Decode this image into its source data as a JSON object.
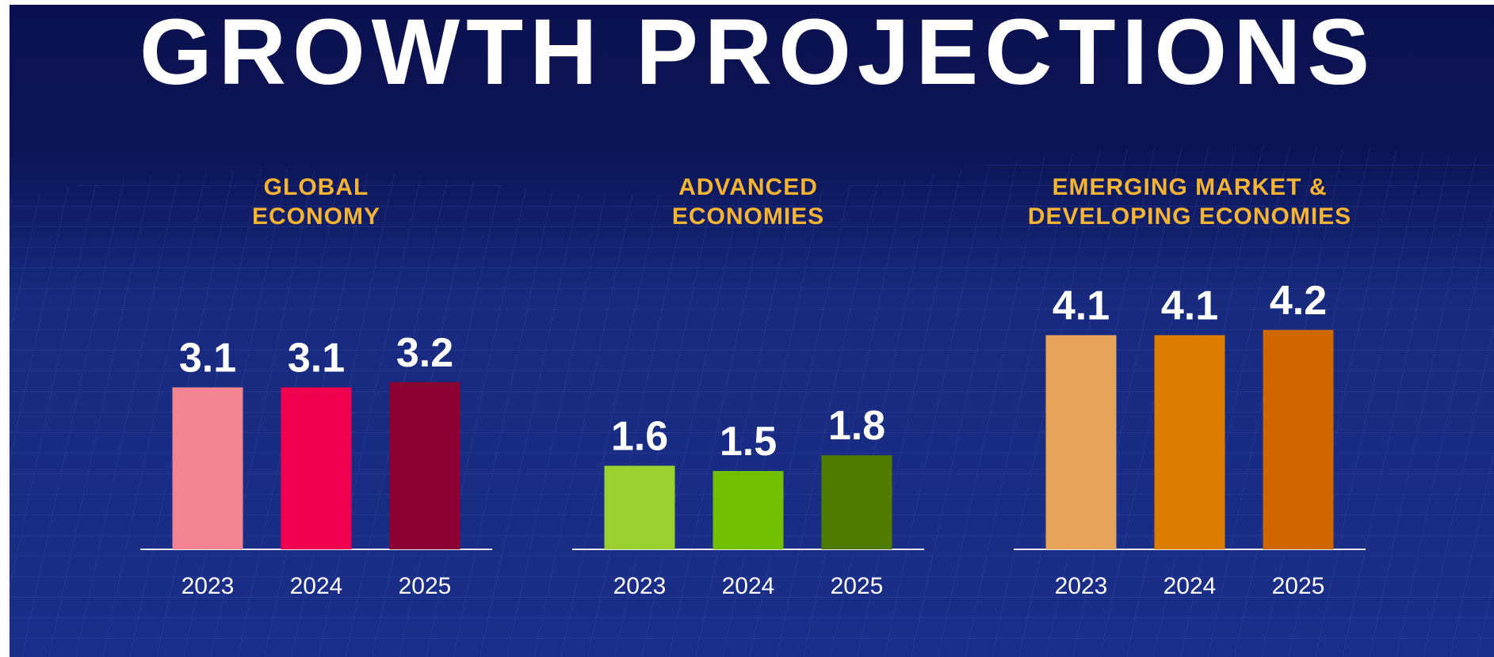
{
  "title": "GROWTH PROJECTIONS",
  "chart_data": [
    {
      "type": "bar",
      "title": [
        "GLOBAL",
        "ECONOMY"
      ],
      "categories": [
        "2023",
        "2024",
        "2025"
      ],
      "values": [
        3.1,
        3.1,
        3.2
      ],
      "colors": [
        "#f28591",
        "#f0004e",
        "#8b0030"
      ]
    },
    {
      "type": "bar",
      "title": [
        "ADVANCED",
        "ECONOMIES"
      ],
      "categories": [
        "2023",
        "2024",
        "2025"
      ],
      "values": [
        1.6,
        1.5,
        1.8
      ],
      "colors": [
        "#9bd12f",
        "#72bf00",
        "#507c00"
      ]
    },
    {
      "type": "bar",
      "title": [
        "EMERGING MARKET &",
        "DEVELOPING ECONOMIES"
      ],
      "categories": [
        "2023",
        "2024",
        "2025"
      ],
      "values": [
        4.1,
        4.1,
        4.2
      ],
      "colors": [
        "#e5a45a",
        "#dd7d00",
        "#cf6600"
      ]
    }
  ]
}
